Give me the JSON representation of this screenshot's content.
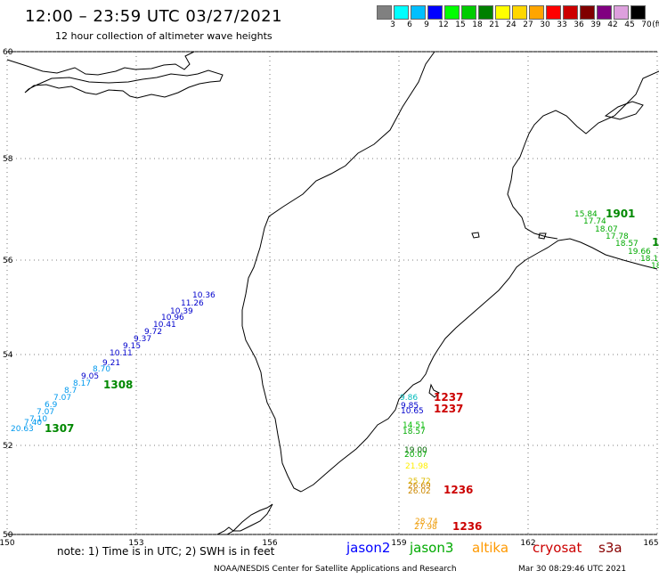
{
  "header": {
    "title": "12:00 – 23:59 UTC 03/27/2021",
    "subtitle": "12 hour collection of altimeter wave heights"
  },
  "color_scale": {
    "labels": [
      "3",
      "6",
      "9",
      "12",
      "15",
      "18",
      "21",
      "24",
      "27",
      "30",
      "33",
      "36",
      "39",
      "42",
      "45",
      "70"
    ],
    "unit": "(ft)",
    "colors": [
      "#808080",
      "#00ffff",
      "#00bfff",
      "#0000ff",
      "#00ff00",
      "#00cc00",
      "#008000",
      "#ffff00",
      "#ffd700",
      "#ffa500",
      "#ff0000",
      "#cc0000",
      "#800000",
      "#800080",
      "#dda0dd",
      "#000000"
    ]
  },
  "axes": {
    "lon_labels": [
      "150",
      "153",
      "156",
      "159",
      "162",
      "165"
    ],
    "lat_labels": [
      "60",
      "58",
      "56",
      "54",
      "52",
      "50"
    ]
  },
  "tracks": [
    {
      "name": "jason2-west",
      "color": "#0000cc",
      "points": [
        {
          "t": "10.36"
        },
        {
          "t": "11.26"
        },
        {
          "t": "10.39"
        },
        {
          "t": "10.96"
        },
        {
          "t": "10.41"
        },
        {
          "t": "9.72"
        },
        {
          "t": "9.37"
        },
        {
          "t": "9.15"
        },
        {
          "t": "10.11"
        },
        {
          "t": "9.21"
        },
        {
          "t": "9.05"
        }
      ]
    },
    {
      "name": "cyan-west",
      "color": "#0099ee",
      "points": [
        {
          "t": "8.70"
        },
        {
          "t": "8.17"
        },
        {
          "t": "8.7"
        },
        {
          "t": "7.07"
        },
        {
          "t": "6.9"
        },
        {
          "t": "7.07"
        },
        {
          "t": "7.10"
        },
        {
          "t": "7.40"
        },
        {
          "t": "20.63"
        }
      ]
    },
    {
      "name": "jason3-east",
      "color": "#00aa00",
      "points": [
        {
          "t": "15.84"
        },
        {
          "t": "17.74"
        },
        {
          "t": "18.07"
        },
        {
          "t": "17.78"
        },
        {
          "t": "18.57"
        },
        {
          "t": "19.66"
        },
        {
          "t": "18.1"
        },
        {
          "t": "18"
        }
      ]
    },
    {
      "name": "south-track",
      "color": "#00aa00",
      "points": [
        {
          "t": "9.86"
        },
        {
          "t": "9.85"
        },
        {
          "t": "10.65"
        },
        {
          "t": "14.51"
        },
        {
          "t": "18.57"
        },
        {
          "t": "19.00"
        },
        {
          "t": "20.07"
        },
        {
          "t": "21.98"
        },
        {
          "t": "25.72"
        },
        {
          "t": "26.69"
        },
        {
          "t": "26.02"
        },
        {
          "t": "28.74"
        },
        {
          "t": "27.98"
        }
      ]
    }
  ],
  "times": [
    {
      "t": "1308",
      "color": "#008800"
    },
    {
      "t": "1307",
      "color": "#008800"
    },
    {
      "t": "1901",
      "color": "#008800"
    },
    {
      "t": "1",
      "color": "#008800"
    },
    {
      "t": "1237",
      "color": "#cc0000"
    },
    {
      "t": "1237",
      "color": "#cc0000"
    },
    {
      "t": "1236",
      "color": "#cc0000"
    },
    {
      "t": "1236",
      "color": "#cc0000"
    }
  ],
  "footer": {
    "note": "note:  1) Time is in UTC; 2) SWH is in feet",
    "satellites": [
      {
        "name": "jason2",
        "color": "#0000ff"
      },
      {
        "name": "jason3",
        "color": "#00aa00"
      },
      {
        "name": "altika",
        "color": "#ff9900"
      },
      {
        "name": "cryosat",
        "color": "#cc0000"
      },
      {
        "name": "s3a",
        "color": "#880000"
      }
    ],
    "credit": "NOAA/NESDIS Center for Satellite Applications and Research",
    "date": "Mar 30 08:29:46 UTC 2021"
  }
}
